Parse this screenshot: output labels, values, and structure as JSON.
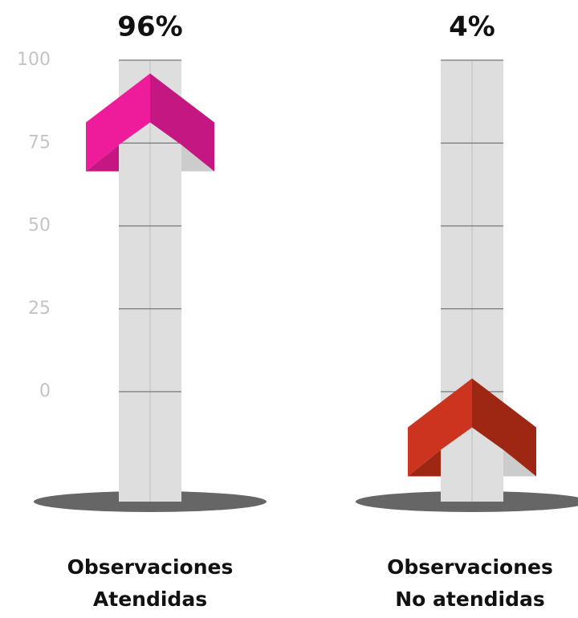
{
  "chart_data": {
    "type": "arrow-column",
    "categories": [
      "Observaciones Atendidas",
      "Observaciones No atendidas"
    ],
    "values": [
      96,
      4
    ],
    "value_labels": [
      "96%",
      "4%"
    ],
    "colors": [
      [
        "#ee1c9b",
        "#c41782"
      ],
      [
        "#cc3420",
        "#9e2714"
      ]
    ],
    "ylim": [
      0,
      100
    ],
    "yticks": [
      0,
      25,
      50,
      75,
      100
    ],
    "grid": true
  }
}
